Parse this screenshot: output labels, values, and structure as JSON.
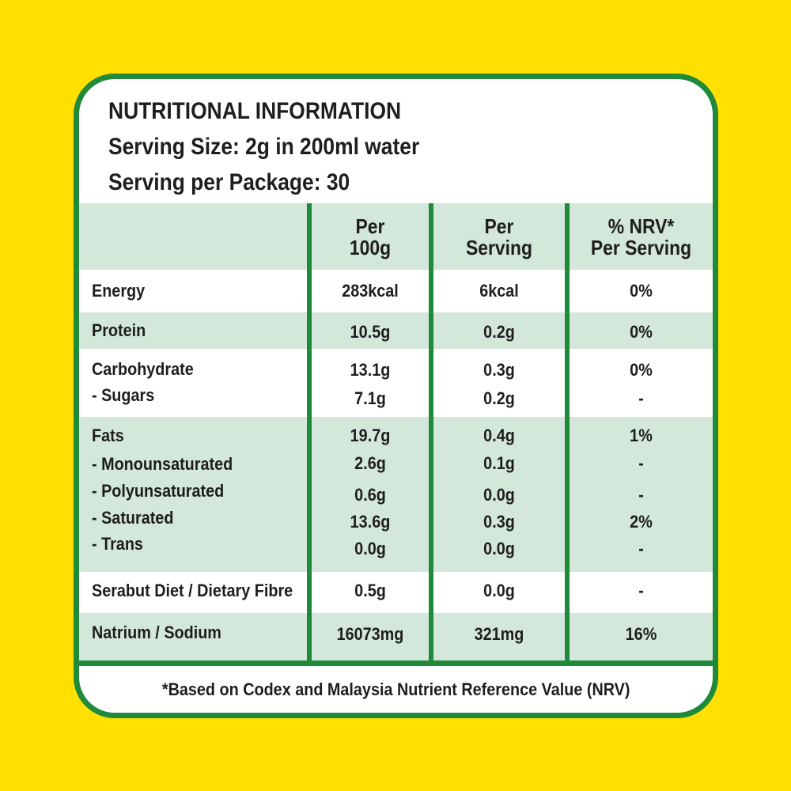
{
  "header": {
    "title": "NUTRITIONAL INFORMATION",
    "serving_size": "Serving Size: 2g in 200ml water",
    "servings_per_package": "Serving per Package: 30"
  },
  "table": {
    "columns": [
      {
        "line1": "Per",
        "line2": "100g"
      },
      {
        "line1": "Per",
        "line2": "Serving"
      },
      {
        "line1": "% NRV*",
        "line2": "Per Serving"
      }
    ],
    "rows": [
      {
        "label": "Energy",
        "per100g": "283kcal",
        "perServing": "6kcal",
        "nrv": "0%"
      },
      {
        "label": "Protein",
        "per100g": "10.5g",
        "perServing": "0.2g",
        "nrv": "0%"
      },
      {
        "label": "Carbohydrate",
        "per100g": "13.1g",
        "perServing": "0.3g",
        "nrv": "0%"
      },
      {
        "label": "- Sugars",
        "per100g": "7.1g",
        "perServing": "0.2g",
        "nrv": "-"
      },
      {
        "label": "Fats",
        "per100g": "19.7g",
        "perServing": "0.4g",
        "nrv": "1%"
      },
      {
        "label": "- Monounsaturated",
        "per100g": "2.6g",
        "perServing": "0.1g",
        "nrv": "-"
      },
      {
        "label": "- Polyunsaturated",
        "per100g": "0.6g",
        "perServing": "0.0g",
        "nrv": "-"
      },
      {
        "label": "- Saturated",
        "per100g": "13.6g",
        "perServing": "0.3g",
        "nrv": "2%"
      },
      {
        "label": "- Trans",
        "per100g": "0.0g",
        "perServing": "0.0g",
        "nrv": "-"
      },
      {
        "label": "Serabut Diet / Dietary Fibre",
        "per100g": "0.5g",
        "perServing": "0.0g",
        "nrv": "-"
      },
      {
        "label": "Natrium / Sodium",
        "per100g": "16073mg",
        "perServing": "321mg",
        "nrv": "16%"
      }
    ]
  },
  "footer": {
    "note": "*Based on Codex and Malaysia Nutrient Reference Value (NRV)"
  },
  "colors": {
    "background": "#FFE000",
    "border_green": "#1E8A3A",
    "row_tint": "#D3E7DA",
    "card": "#FFFFFF"
  }
}
